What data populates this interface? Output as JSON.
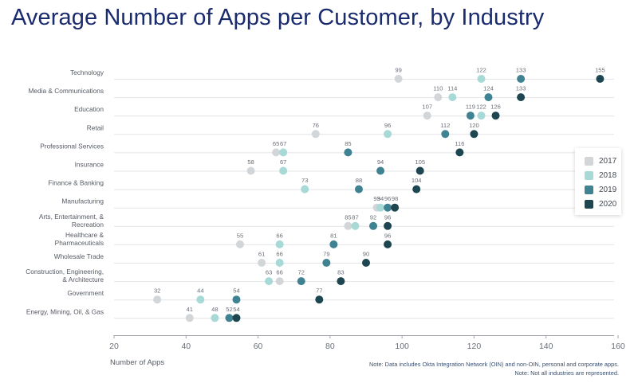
{
  "title": "Average Number of Apps per Customer, by Industry",
  "colors": {
    "2017": "#d3d6d9",
    "2018": "#a7d9d6",
    "2019": "#3f8291",
    "2020": "#1d4650"
  },
  "chart_data": {
    "type": "scatter",
    "title": "Average Number of Apps per Customer, by Industry",
    "xlabel": "Number of Apps",
    "xlim": [
      20,
      160
    ],
    "xticks": [
      20,
      40,
      60,
      80,
      100,
      120,
      140,
      160
    ],
    "legend_position": "right",
    "grid": false,
    "series": [
      {
        "name": "2017",
        "color": "#d3d6d9",
        "values": [
          99,
          110,
          107,
          76,
          65,
          58,
          73,
          93,
          85,
          55,
          61,
          66,
          32,
          41
        ]
      },
      {
        "name": "2018",
        "color": "#a7d9d6",
        "values": [
          122,
          114,
          122,
          96,
          67,
          67,
          73,
          94,
          87,
          66,
          66,
          63,
          44,
          48
        ]
      },
      {
        "name": "2019",
        "color": "#3f8291",
        "values": [
          133,
          124,
          119,
          112,
          85,
          94,
          88,
          96,
          92,
          81,
          79,
          72,
          54,
          52
        ]
      },
      {
        "name": "2020",
        "color": "#1d4650",
        "values": [
          155,
          133,
          126,
          120,
          116,
          105,
          104,
          98,
          96,
          96,
          90,
          83,
          77,
          54
        ]
      }
    ],
    "categories": [
      [
        "Technology"
      ],
      [
        "Media & Communications"
      ],
      [
        "Education"
      ],
      [
        "Retail"
      ],
      [
        "Professional Services"
      ],
      [
        "Insurance"
      ],
      [
        "Finance & Banking"
      ],
      [
        "Manufacturing"
      ],
      [
        "Arts, Entertainment, &",
        "Recreation"
      ],
      [
        "Healthcare &",
        "Pharmaceuticals"
      ],
      [
        "Wholesale Trade"
      ],
      [
        "Construction, Engineering,",
        "& Architecture"
      ],
      [
        "Government"
      ],
      [
        "Energy, Mining, Oil, & Gas"
      ]
    ],
    "point_labels": [
      [
        "99",
        "122",
        "133",
        "155"
      ],
      [
        "110",
        "114",
        "124",
        "133"
      ],
      [
        "107",
        "122",
        "119",
        "126"
      ],
      [
        "76",
        "96",
        "112",
        "120"
      ],
      [
        "65",
        "67",
        "85",
        "116"
      ],
      [
        "58",
        "67",
        "94",
        "105"
      ],
      [
        "",
        "73",
        "88",
        "104"
      ],
      [
        "93",
        "94",
        "96",
        "98"
      ],
      [
        "85",
        "87",
        "92",
        "96"
      ],
      [
        "55",
        "66",
        "81",
        "96"
      ],
      [
        "61",
        "66",
        "79",
        "90"
      ],
      [
        "66",
        "63",
        "72",
        "83"
      ],
      [
        "32",
        "44",
        "54",
        "77"
      ],
      [
        "41",
        "48",
        "52",
        "54"
      ]
    ],
    "notes": [
      "Note: Data includes Okta Integration Network (OIN) and non-OIN, personal and corporate apps.",
      "Note: Not all industries are represented."
    ]
  }
}
